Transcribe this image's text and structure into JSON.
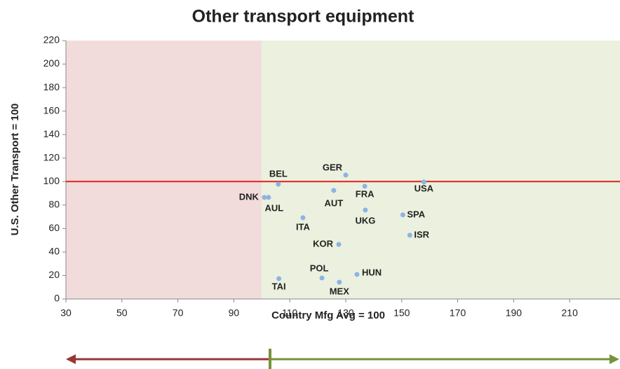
{
  "chart_data": {
    "type": "scatter",
    "title": "Other transport equipment",
    "x_label": "Country Mfg Avg = 100",
    "y_label": "U.S. Other Transport = 100",
    "xlim": [
      30,
      228
    ],
    "ylim": [
      0,
      220
    ],
    "xticks": [
      30,
      50,
      70,
      90,
      110,
      130,
      150,
      170,
      190,
      210
    ],
    "yticks": [
      0,
      20,
      40,
      60,
      80,
      100,
      120,
      140,
      160,
      180,
      200,
      220
    ],
    "reference_x": 100,
    "reference_y": 100,
    "reference_line_color": "#e02020",
    "left_region_color": "#f2dcdb",
    "right_region_color": "#ebf1de",
    "point_color": "#8db3e2",
    "labels": [
      "BEL",
      "DNK",
      "AUL",
      "GER",
      "AUT",
      "FRA",
      "USA",
      "UKG",
      "SPA",
      "ISR",
      "ITA",
      "KOR",
      "POL",
      "HUN",
      "MEX",
      "TAI"
    ],
    "x": [
      105.9,
      100.9,
      102.4,
      130,
      125.7,
      136.8,
      157.9,
      137,
      150.4,
      152.9,
      114.7,
      127.5,
      121.5,
      134,
      127.7,
      106.1
    ],
    "y": [
      97.8,
      86.5,
      86.5,
      105.5,
      92.4,
      96,
      99.6,
      75.7,
      71.6,
      54.3,
      69.2,
      46.5,
      17.9,
      20.9,
      14.3,
      17.3
    ]
  }
}
